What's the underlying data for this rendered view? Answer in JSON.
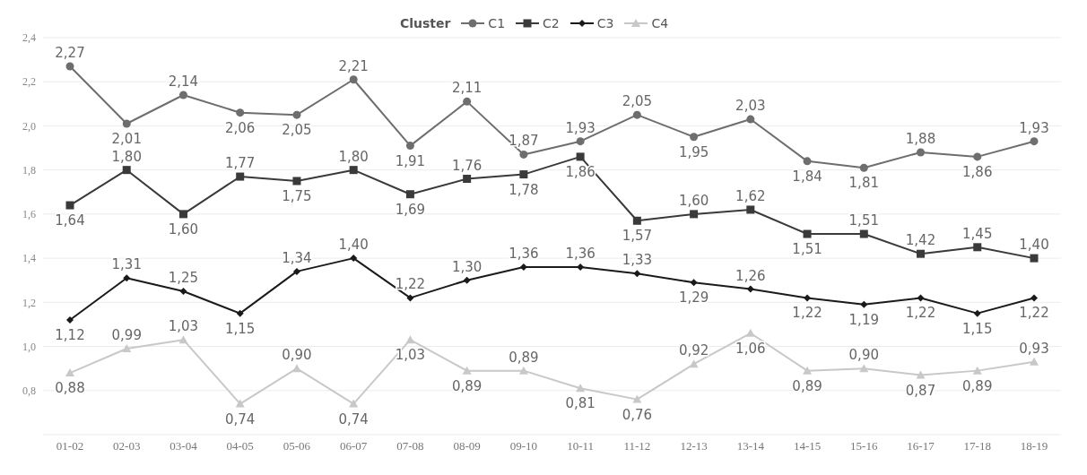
{
  "chart_data": {
    "type": "line",
    "legend_title": "Cluster",
    "legend": "top",
    "grid": "y",
    "categories": [
      "01-02",
      "02-03",
      "03-04",
      "04-05",
      "05-06",
      "06-07",
      "07-08",
      "08-09",
      "09-10",
      "10-11",
      "11-12",
      "12-13",
      "13-14",
      "14-15",
      "15-16",
      "16-17",
      "17-18",
      "18-19"
    ],
    "ylim": [
      0.6,
      2.4
    ],
    "yticks": [
      {
        "value": 0.8,
        "label": "0,8"
      },
      {
        "value": 1.0,
        "label": "1,0"
      },
      {
        "value": 1.2,
        "label": "1,2"
      },
      {
        "value": 1.4,
        "label": "1,4"
      },
      {
        "value": 1.6,
        "label": "1,6"
      },
      {
        "value": 1.8,
        "label": "1,8"
      },
      {
        "value": 2.0,
        "label": "2,0"
      },
      {
        "value": 2.2,
        "label": "2,2"
      },
      {
        "value": 2.4,
        "label": "2,4"
      }
    ],
    "series": [
      {
        "name": "C1",
        "color": "#6e6e6e",
        "marker": "circle",
        "values": [
          2.27,
          2.01,
          2.14,
          2.06,
          2.05,
          2.21,
          1.91,
          2.11,
          1.87,
          1.93,
          2.05,
          1.95,
          2.03,
          1.84,
          1.81,
          1.88,
          1.86,
          1.93
        ],
        "value_labels": [
          "2,27",
          "2,01",
          "2,14",
          "2,06",
          "2,05",
          "2,21",
          "1,91",
          "2,11",
          "1,87",
          "1,93",
          "2,05",
          "1,95",
          "2,03",
          "1,84",
          "1,81",
          "1,88",
          "1,86",
          "1,93"
        ]
      },
      {
        "name": "C2",
        "color": "#3a3a3a",
        "marker": "square",
        "values": [
          1.64,
          1.8,
          1.6,
          1.77,
          1.75,
          1.8,
          1.69,
          1.76,
          1.78,
          1.86,
          1.57,
          1.6,
          1.62,
          1.51,
          1.51,
          1.42,
          1.45,
          1.4
        ],
        "value_labels": [
          "1,64",
          "1,80",
          "1,60",
          "1,77",
          "1,75",
          "1,80",
          "1,69",
          "1,76",
          "1,78",
          "1,86",
          "1,57",
          "1,60",
          "1,62",
          "1,51",
          "1,51",
          "1,42",
          "1,45",
          "1,40"
        ]
      },
      {
        "name": "C3",
        "color": "#1a1a1a",
        "marker": "diamond",
        "values": [
          1.12,
          1.31,
          1.25,
          1.15,
          1.34,
          1.4,
          1.22,
          1.3,
          1.36,
          1.36,
          1.33,
          1.29,
          1.26,
          1.22,
          1.19,
          1.22,
          1.15,
          1.22
        ],
        "value_labels": [
          "1,12",
          "1,31",
          "1,25",
          "1,15",
          "1,34",
          "1,40",
          "1,22",
          "1,30",
          "1,36",
          "1,36",
          "1,33",
          "1,29",
          "1,26",
          "1,22",
          "1,19",
          "1,22",
          "1,15",
          "1,22"
        ]
      },
      {
        "name": "C4",
        "color": "#c8c8c8",
        "marker": "triangle",
        "values": [
          0.88,
          0.99,
          1.03,
          0.74,
          0.9,
          0.74,
          1.03,
          0.89,
          0.89,
          0.81,
          0.76,
          0.92,
          1.06,
          0.89,
          0.9,
          0.87,
          0.89,
          0.93
        ],
        "value_labels": [
          "0,88",
          "0,99",
          "1,03",
          "0,74",
          "0,90",
          "0,74",
          "1,03",
          "0,89",
          "0,89",
          "0,81",
          "0,76",
          "0,92",
          "1,06",
          "0,89",
          "0,90",
          "0,87",
          "0,89",
          "0,93"
        ]
      }
    ]
  }
}
